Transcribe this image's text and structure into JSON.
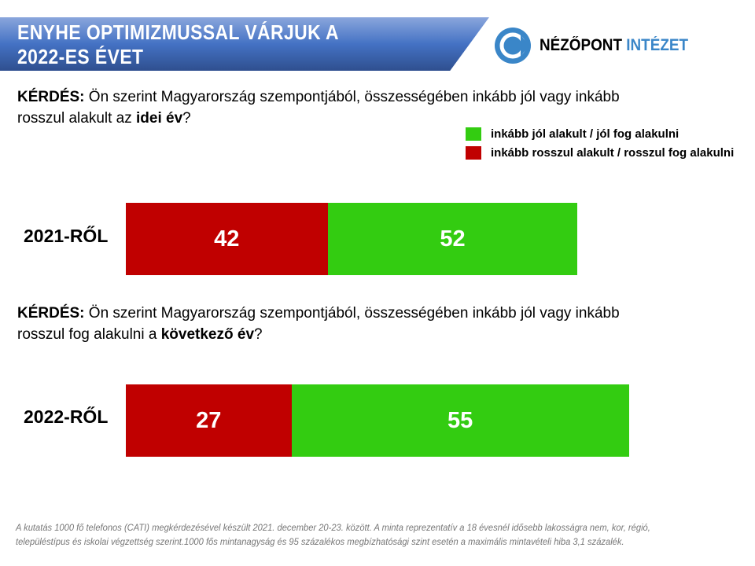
{
  "header": {
    "title_line1": "ENYHE OPTIMIZMUSSAL VÁRJUK A",
    "title_line2": "2022-ES ÉVET"
  },
  "logo": {
    "part1": "NÉZŐPONT",
    "part2": "INTÉZET"
  },
  "colors": {
    "positive": "#33cc11",
    "negative": "#c00000"
  },
  "questions": [
    {
      "label": "KÉRDÉS:",
      "text1": " Ön szerint Magyarország szempontjából, összességében inkább jól vagy inkább rosszul alakult az ",
      "bold": "idei év",
      "end": "?"
    },
    {
      "label": "KÉRDÉS:",
      "text1": " Ön szerint Magyarország szempontjából, összességében inkább jól vagy inkább rosszul fog alakulni a ",
      "bold": "következő év",
      "end": "?"
    }
  ],
  "chart_data": {
    "type": "bar",
    "orientation": "horizontal-stacked",
    "categories": [
      "2021-RŐL",
      "2022-RŐL"
    ],
    "series": [
      {
        "name": "inkább rosszul alakult / rosszul fog alakulni",
        "values": [
          42,
          27
        ]
      },
      {
        "name": "inkább jól alakult / jól fog alakulni",
        "values": [
          52,
          55
        ]
      }
    ],
    "legend": [
      "inkább jól alakult / jól fog alakulni",
      "inkább rosszul alakult / rosszul fog alakulni"
    ],
    "legend_position": "top-right"
  },
  "footnote": "A kutatás 1000 fő telefonos (CATI) megkérdezésével készült 2021. december 20-23. között. A minta reprezentatív a 18 évesnél idősebb lakosságra nem, kor, régió, településtípus és iskolai végzettség szerint.1000 fős mintanagyság és 95 százalékos megbízhatósági szint esetén a maximális mintavételi hiba 3,1 százalék."
}
